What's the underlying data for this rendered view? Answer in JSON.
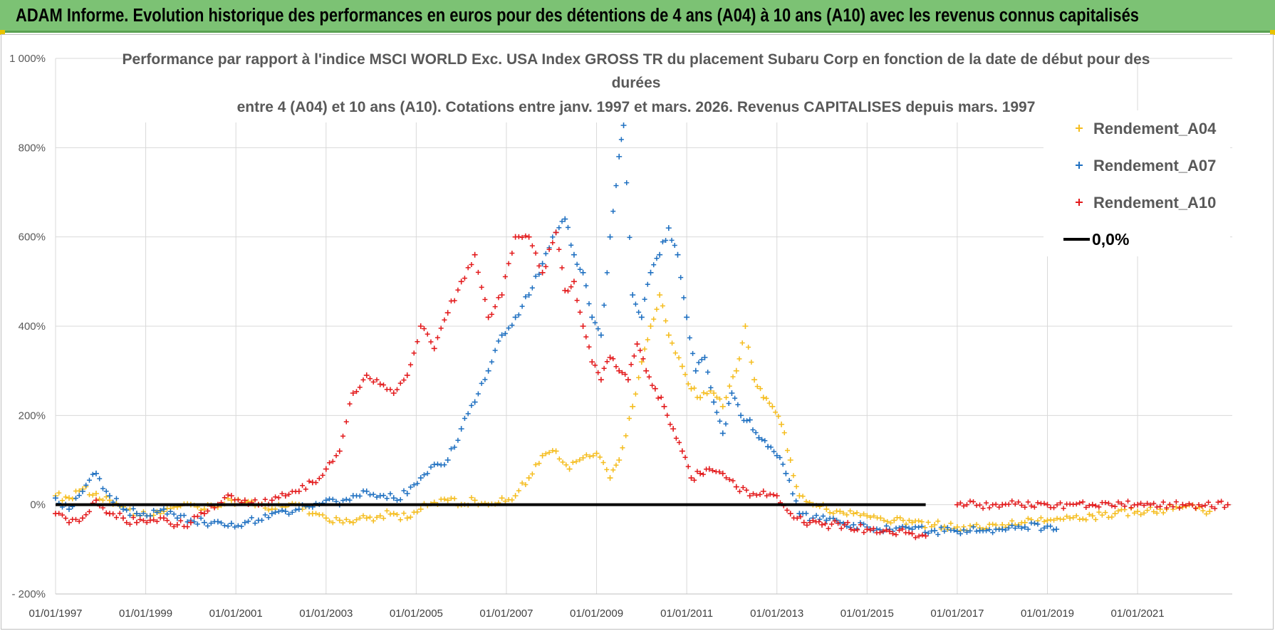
{
  "banner": {
    "title": "ADAM Informe. Evolution historique des performances en euros pour des détentions de 4 ans (A04) à 10 ans (A10) avec les revenus connus capitalisés"
  },
  "chart_data": {
    "type": "scatter",
    "title_lines": [
      "Performance par rapport à l'indice MSCI WORLD Exc. USA Index GROSS TR  du placement Subaru Corp en fonction de la date de début pour des",
      "durées",
      "entre 4 (A04) et 10 ans (A10). Cotations entre janv. 1997 et mars. 2026. Revenus CAPITALISES depuis mars. 1997"
    ],
    "y_ticks": [
      -200,
      0,
      200,
      400,
      600,
      800,
      1000
    ],
    "y_tick_labels": [
      "- 200%",
      "0%",
      "200%",
      "400%",
      "600%",
      "800%",
      "1 000%"
    ],
    "ylim": [
      -200,
      1000
    ],
    "x_ticks": [
      1997,
      1999,
      2001,
      2003,
      2005,
      2007,
      2009,
      2011,
      2013,
      2015,
      2017,
      2019,
      2021
    ],
    "x_tick_labels": [
      "01/01/1997",
      "01/01/1999",
      "01/01/2001",
      "01/01/2003",
      "01/01/2005",
      "01/01/2007",
      "01/01/2009",
      "01/01/2011",
      "01/01/2013",
      "01/01/2015",
      "01/01/2017",
      "01/01/2019",
      "01/01/2021"
    ],
    "xlim": [
      1997,
      2023.1
    ],
    "legend_position": "top-right",
    "series": [
      {
        "name": "Rendement_A04",
        "color": "#f5bd1f",
        "marker": "+",
        "points": [
          [
            1997.0,
            20
          ],
          [
            1997.3,
            15
          ],
          [
            1997.6,
            35
          ],
          [
            1997.9,
            25
          ],
          [
            1998.2,
            10
          ],
          [
            1998.5,
            -5
          ],
          [
            1998.8,
            -20
          ],
          [
            1999.1,
            -25
          ],
          [
            1999.4,
            -15
          ],
          [
            1999.7,
            -5
          ],
          [
            2000.0,
            0
          ],
          [
            2000.3,
            -10
          ],
          [
            2000.6,
            -5
          ],
          [
            2000.9,
            10
          ],
          [
            2001.2,
            5
          ],
          [
            2001.5,
            0
          ],
          [
            2001.8,
            -10
          ],
          [
            2002.1,
            -5
          ],
          [
            2002.4,
            0
          ],
          [
            2002.7,
            -20
          ],
          [
            2003.0,
            -30
          ],
          [
            2003.3,
            -35
          ],
          [
            2003.6,
            -40
          ],
          [
            2003.9,
            -30
          ],
          [
            2004.2,
            -25
          ],
          [
            2004.5,
            -20
          ],
          [
            2004.8,
            -30
          ],
          [
            2005.1,
            -10
          ],
          [
            2005.4,
            5
          ],
          [
            2005.7,
            10
          ],
          [
            2006.0,
            0
          ],
          [
            2006.3,
            10
          ],
          [
            2006.6,
            0
          ],
          [
            2006.9,
            15
          ],
          [
            2007.2,
            20
          ],
          [
            2007.5,
            60
          ],
          [
            2007.8,
            110
          ],
          [
            2008.1,
            120
          ],
          [
            2008.4,
            80
          ],
          [
            2008.7,
            105
          ],
          [
            2009.0,
            115
          ],
          [
            2009.3,
            60
          ],
          [
            2009.5,
            100
          ],
          [
            2009.8,
            220
          ],
          [
            2010.0,
            320
          ],
          [
            2010.2,
            400
          ],
          [
            2010.4,
            470
          ],
          [
            2010.6,
            380
          ],
          [
            2010.9,
            310
          ],
          [
            2011.1,
            260
          ],
          [
            2011.3,
            240
          ],
          [
            2011.6,
            250
          ],
          [
            2011.8,
            220
          ],
          [
            2012.1,
            300
          ],
          [
            2012.3,
            400
          ],
          [
            2012.5,
            280
          ],
          [
            2012.7,
            240
          ],
          [
            2012.9,
            220
          ],
          [
            2013.1,
            180
          ],
          [
            2013.3,
            100
          ],
          [
            2013.5,
            20
          ],
          [
            2013.8,
            0
          ],
          [
            2014.1,
            -10
          ],
          [
            2014.4,
            -15
          ],
          [
            2014.7,
            -20
          ],
          [
            2015.0,
            -25
          ],
          [
            2015.3,
            -30
          ],
          [
            2015.6,
            -35
          ],
          [
            2016.0,
            -40
          ],
          [
            2016.5,
            -45
          ],
          [
            2017.0,
            -50
          ],
          [
            2017.5,
            -52
          ],
          [
            2018.0,
            -45
          ],
          [
            2018.5,
            -40
          ],
          [
            2019.0,
            -35
          ],
          [
            2019.5,
            -30
          ],
          [
            2020.0,
            -25
          ],
          [
            2020.5,
            -20
          ],
          [
            2021.0,
            -15
          ],
          [
            2021.5,
            -10
          ],
          [
            2022.0,
            -5
          ],
          [
            2022.6,
            -15
          ]
        ]
      },
      {
        "name": "Rendement_A07",
        "color": "#1f70c1",
        "marker": "+",
        "points": [
          [
            1997.0,
            15
          ],
          [
            1997.3,
            -10
          ],
          [
            1997.6,
            30
          ],
          [
            1997.9,
            70
          ],
          [
            1998.2,
            20
          ],
          [
            1998.5,
            -10
          ],
          [
            1998.8,
            -20
          ],
          [
            1999.1,
            -25
          ],
          [
            1999.4,
            -10
          ],
          [
            1999.7,
            -30
          ],
          [
            2000.0,
            -35
          ],
          [
            2000.3,
            -40
          ],
          [
            2000.6,
            -38
          ],
          [
            2000.9,
            -42
          ],
          [
            2001.2,
            -40
          ],
          [
            2001.5,
            -35
          ],
          [
            2001.8,
            -20
          ],
          [
            2002.1,
            -15
          ],
          [
            2002.4,
            -10
          ],
          [
            2002.7,
            -5
          ],
          [
            2003.0,
            10
          ],
          [
            2003.3,
            0
          ],
          [
            2003.6,
            20
          ],
          [
            2003.9,
            30
          ],
          [
            2004.2,
            20
          ],
          [
            2004.5,
            15
          ],
          [
            2004.8,
            25
          ],
          [
            2005.1,
            60
          ],
          [
            2005.4,
            90
          ],
          [
            2005.7,
            100
          ],
          [
            2006.0,
            170
          ],
          [
            2006.3,
            230
          ],
          [
            2006.6,
            300
          ],
          [
            2006.9,
            380
          ],
          [
            2007.2,
            420
          ],
          [
            2007.5,
            470
          ],
          [
            2007.8,
            540
          ],
          [
            2008.1,
            610
          ],
          [
            2008.3,
            640
          ],
          [
            2008.5,
            560
          ],
          [
            2008.7,
            520
          ],
          [
            2008.9,
            420
          ],
          [
            2009.1,
            380
          ],
          [
            2009.3,
            600
          ],
          [
            2009.5,
            780
          ],
          [
            2009.6,
            850
          ],
          [
            2009.8,
            470
          ],
          [
            2010.0,
            420
          ],
          [
            2010.2,
            520
          ],
          [
            2010.4,
            560
          ],
          [
            2010.6,
            620
          ],
          [
            2010.8,
            560
          ],
          [
            2011.0,
            420
          ],
          [
            2011.2,
            300
          ],
          [
            2011.4,
            330
          ],
          [
            2011.6,
            230
          ],
          [
            2011.8,
            160
          ],
          [
            2012.0,
            250
          ],
          [
            2012.2,
            200
          ],
          [
            2012.4,
            190
          ],
          [
            2012.6,
            150
          ],
          [
            2012.8,
            130
          ],
          [
            2013.0,
            110
          ],
          [
            2013.2,
            70
          ],
          [
            2013.5,
            -20
          ],
          [
            2013.8,
            -30
          ],
          [
            2014.1,
            -35
          ],
          [
            2014.4,
            -40
          ],
          [
            2014.7,
            -45
          ],
          [
            2015.0,
            -50
          ],
          [
            2015.5,
            -55
          ],
          [
            2016.0,
            -55
          ],
          [
            2016.5,
            -58
          ],
          [
            2017.0,
            -60
          ],
          [
            2017.5,
            -58
          ],
          [
            2018.0,
            -55
          ],
          [
            2018.5,
            -50
          ],
          [
            2019.0,
            -48
          ],
          [
            2019.2,
            -55
          ]
        ]
      },
      {
        "name": "Rendement_A10",
        "color": "#e31a1c",
        "marker": "+",
        "points": [
          [
            1997.0,
            -20
          ],
          [
            1997.3,
            -40
          ],
          [
            1997.6,
            -30
          ],
          [
            1997.9,
            10
          ],
          [
            1998.2,
            -20
          ],
          [
            1998.5,
            -30
          ],
          [
            1998.8,
            -40
          ],
          [
            1999.1,
            -35
          ],
          [
            1999.4,
            -30
          ],
          [
            1999.7,
            -45
          ],
          [
            2000.0,
            -40
          ],
          [
            2000.3,
            -20
          ],
          [
            2000.6,
            0
          ],
          [
            2000.9,
            20
          ],
          [
            2001.2,
            10
          ],
          [
            2001.5,
            0
          ],
          [
            2001.8,
            10
          ],
          [
            2002.1,
            20
          ],
          [
            2002.4,
            30
          ],
          [
            2002.7,
            50
          ],
          [
            2003.0,
            80
          ],
          [
            2003.3,
            120
          ],
          [
            2003.6,
            250
          ],
          [
            2003.9,
            290
          ],
          [
            2004.2,
            270
          ],
          [
            2004.5,
            250
          ],
          [
            2004.8,
            290
          ],
          [
            2005.1,
            400
          ],
          [
            2005.4,
            350
          ],
          [
            2005.7,
            430
          ],
          [
            2006.0,
            500
          ],
          [
            2006.3,
            560
          ],
          [
            2006.6,
            420
          ],
          [
            2006.9,
            470
          ],
          [
            2007.2,
            600
          ],
          [
            2007.5,
            600
          ],
          [
            2007.8,
            520
          ],
          [
            2008.1,
            610
          ],
          [
            2008.3,
            480
          ],
          [
            2008.5,
            500
          ],
          [
            2008.7,
            400
          ],
          [
            2008.9,
            320
          ],
          [
            2009.1,
            280
          ],
          [
            2009.3,
            330
          ],
          [
            2009.5,
            300
          ],
          [
            2009.7,
            280
          ],
          [
            2009.9,
            360
          ],
          [
            2010.1,
            300
          ],
          [
            2010.3,
            260
          ],
          [
            2010.5,
            220
          ],
          [
            2010.7,
            170
          ],
          [
            2010.9,
            120
          ],
          [
            2011.1,
            60
          ],
          [
            2011.3,
            70
          ],
          [
            2011.5,
            80
          ],
          [
            2011.8,
            70
          ],
          [
            2012.1,
            40
          ],
          [
            2012.4,
            20
          ],
          [
            2012.7,
            30
          ],
          [
            2013.0,
            20
          ],
          [
            2013.3,
            -20
          ],
          [
            2013.6,
            -40
          ],
          [
            2014.0,
            -45
          ],
          [
            2014.5,
            -45
          ],
          [
            2015.0,
            -55
          ],
          [
            2015.5,
            -60
          ],
          [
            2016.0,
            -65
          ],
          [
            2016.3,
            -70
          ]
        ]
      },
      {
        "name": "Rendement_A10",
        "color": "#e31a1c",
        "marker": "+",
        "points": [
          [
            2017.0,
            0
          ],
          [
            2018.0,
            0
          ],
          [
            2019.0,
            0
          ],
          [
            2020.0,
            0
          ],
          [
            2021.0,
            0
          ],
          [
            2022.0,
            0
          ],
          [
            2023.0,
            0
          ]
        ]
      },
      {
        "name": "0,0%",
        "color": "#000000",
        "marker": "line",
        "points": [
          [
            1997.0,
            0
          ],
          [
            2016.3,
            0
          ]
        ]
      }
    ]
  }
}
